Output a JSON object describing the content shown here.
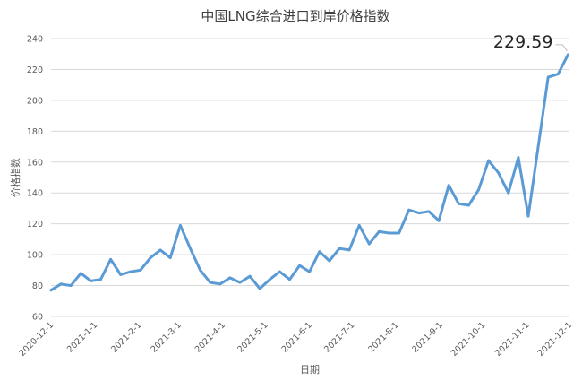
{
  "chart_data": {
    "type": "line",
    "title": "中国LNG综合进口到岸价格指数",
    "xlabel": "日期",
    "ylabel": "价格指数",
    "ylim": [
      60,
      240
    ],
    "yticks": [
      60,
      80,
      100,
      120,
      140,
      160,
      180,
      200,
      220,
      240
    ],
    "grid": true,
    "x_tick_labels": [
      "2020-12-1",
      "2021-1-1",
      "2021-2-1",
      "2021-3-1",
      "2021-4-1",
      "2021-5-1",
      "2021-6-1",
      "2021-7-1",
      "2021-8-1",
      "2021-9-1",
      "2021-10-1",
      "2021-11-1",
      "2021-12-1"
    ],
    "color": "#5b9bd5",
    "series": [
      {
        "x": [
          "2020-12-01",
          "2020-12-08",
          "2020-12-15",
          "2020-12-22",
          "2020-12-29",
          "2021-01-05",
          "2021-01-12",
          "2021-01-19",
          "2021-01-26",
          "2021-02-02",
          "2021-02-09",
          "2021-02-16",
          "2021-02-23",
          "2021-03-02",
          "2021-03-09",
          "2021-03-16",
          "2021-03-23",
          "2021-03-30",
          "2021-04-06",
          "2021-04-13",
          "2021-04-20",
          "2021-04-27",
          "2021-05-04",
          "2021-05-11",
          "2021-05-18",
          "2021-05-25",
          "2021-06-01",
          "2021-06-08",
          "2021-06-15",
          "2021-06-22",
          "2021-06-29",
          "2021-07-06",
          "2021-07-13",
          "2021-07-20",
          "2021-07-27",
          "2021-08-03",
          "2021-08-10",
          "2021-08-17",
          "2021-08-24",
          "2021-08-31",
          "2021-09-07",
          "2021-09-14",
          "2021-09-21",
          "2021-09-28",
          "2021-10-05",
          "2021-10-12",
          "2021-10-19",
          "2021-10-26",
          "2021-11-02",
          "2021-11-09",
          "2021-11-16",
          "2021-11-23",
          "2021-11-30"
        ],
        "values": [
          77,
          81,
          80,
          88,
          83,
          84,
          97,
          87,
          89,
          90,
          98,
          103,
          98,
          119,
          104,
          90,
          82,
          81,
          85,
          82,
          86,
          78,
          84,
          89,
          84,
          93,
          89,
          102,
          96,
          104,
          103,
          119,
          107,
          115,
          114,
          114,
          129,
          127,
          128,
          122,
          145,
          133,
          132,
          142,
          161,
          153,
          140,
          163,
          125,
          170,
          215,
          217,
          229.59
        ]
      }
    ],
    "annotations": [
      "229.59"
    ]
  }
}
